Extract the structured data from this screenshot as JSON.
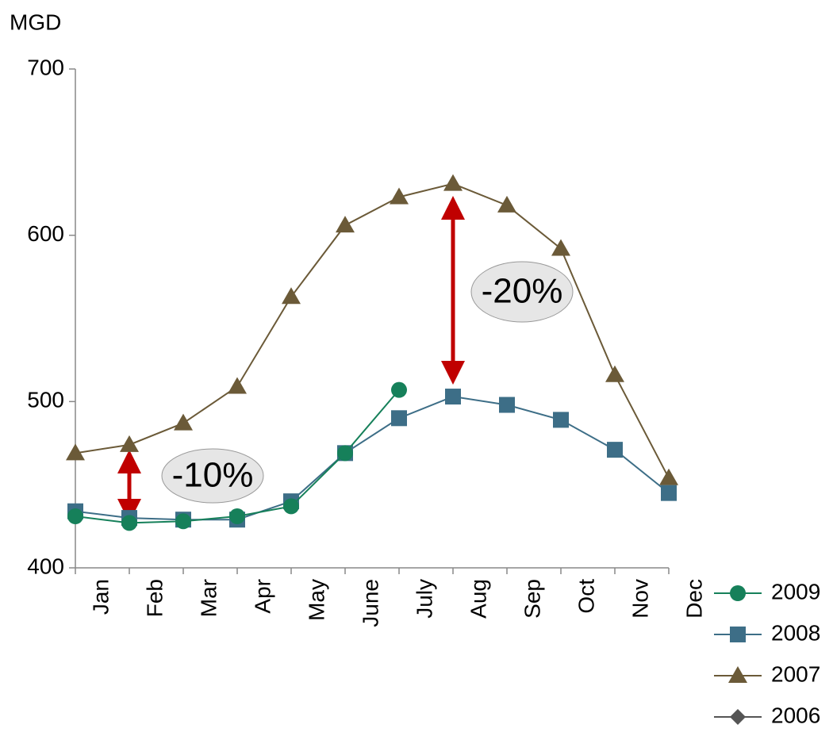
{
  "chart_data": {
    "type": "line",
    "y_label": "MGD",
    "categories": [
      "Jan",
      "Feb",
      "Mar",
      "Apr",
      "May",
      "June",
      "July",
      "Aug",
      "Sep",
      "Oct",
      "Nov",
      "Dec"
    ],
    "series": [
      {
        "name": "2009",
        "color": "#16805a",
        "marker": "circle",
        "values": [
          431,
          427,
          428,
          431,
          437,
          469,
          507,
          null,
          null,
          null,
          null,
          null
        ]
      },
      {
        "name": "2008",
        "color": "#3d6e87",
        "marker": "square",
        "values": [
          434,
          430,
          429,
          429,
          440,
          469,
          490,
          503,
          498,
          489,
          471,
          445
        ]
      },
      {
        "name": "2007",
        "color": "#6b5a38",
        "marker": "triangle",
        "values": [
          469,
          474,
          487,
          509,
          563,
          606,
          623,
          631,
          618,
          592,
          516,
          454
        ]
      },
      {
        "name": "2006",
        "color": "#555555",
        "marker": "diamond",
        "values": [
          null,
          null,
          null,
          null,
          null,
          null,
          null,
          null,
          null,
          null,
          null,
          null
        ]
      }
    ],
    "ylim": [
      400,
      700
    ],
    "yticks": [
      400,
      500,
      600,
      700
    ],
    "annotations": [
      "-10%",
      "-20%"
    ],
    "legend": "bottom-right"
  }
}
